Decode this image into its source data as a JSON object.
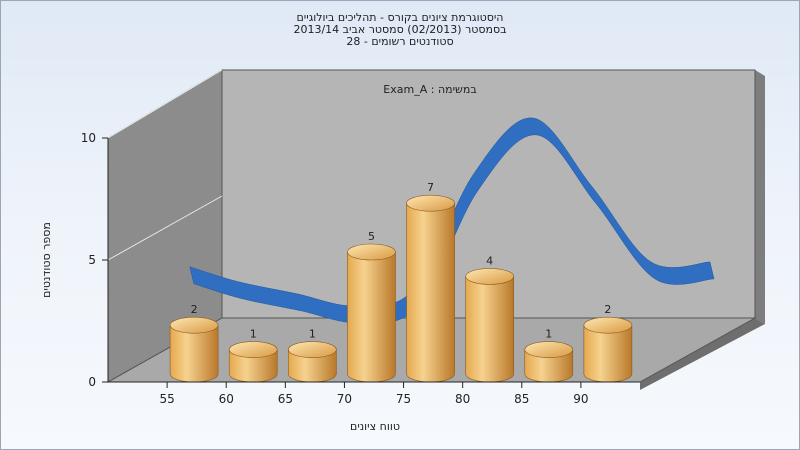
{
  "header": {
    "line1": "היסטוגרמת ציונים בקורס - תהליכים ביולוגיים",
    "line2": "בסמסטר  (02/2013)  סמסטר אביב 2013/14",
    "line3": "סטודנטים רשומים - 28"
  },
  "colors": {
    "bar_light": "#f6d28f",
    "bar_mid": "#e5a94f",
    "bar_dark": "#b9782a",
    "curve": "#2f6ec0",
    "back_wall": "#b5b5b5",
    "side_wall": "#8c8c8c",
    "floor": "#a9a9a9"
  },
  "chart_data": {
    "type": "bar",
    "annotation": "Exam_A : במשימה",
    "categories": [
      "55",
      "60",
      "65",
      "70",
      "75",
      "80",
      "85",
      "90"
    ],
    "values": [
      2,
      1,
      1,
      5,
      7,
      4,
      1,
      2
    ],
    "data_labels": [
      "2",
      "1",
      "1",
      "5",
      "7",
      "4",
      "1",
      "2"
    ],
    "curve": {
      "x": [
        51,
        55,
        60,
        65,
        70,
        75,
        80,
        85,
        90,
        95
      ],
      "y": [
        3.0,
        2.4,
        1.9,
        1.4,
        2.1,
        6.8,
        9.1,
        6.3,
        3.2,
        3.2
      ]
    },
    "x_tick_labels": [
      "55",
      "60",
      "65",
      "70",
      "75",
      "80",
      "85",
      "90"
    ],
    "y_tick_labels": [
      "0",
      "5",
      "10"
    ],
    "ylim": [
      0,
      10
    ],
    "xlabel": "טווח ציונים",
    "ylabel": "מספר סטודנטים",
    "grid": false,
    "legend": "none"
  }
}
